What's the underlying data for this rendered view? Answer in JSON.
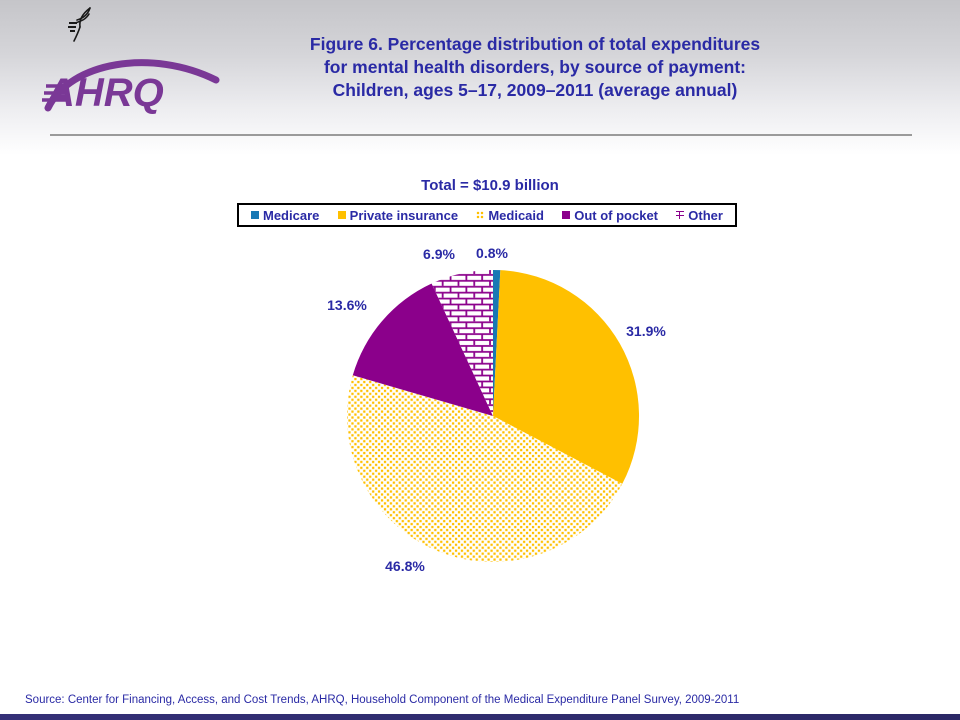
{
  "header": {
    "title_lines": [
      "Figure 6. Percentage distribution of total expenditures",
      "for mental health disorders, by source of payment:",
      "Children, ages 5–17, 2009–2011 (average annual)"
    ],
    "logo_text": "AHRQ"
  },
  "chart_data": {
    "type": "pie",
    "title": "Figure 6. Percentage distribution of total expenditures for mental health disorders, by source of payment: Children, ages 5–17, 2009–2011 (average annual)",
    "total_label": "Total = $10.9 billion",
    "categories": [
      "Medicare",
      "Private insurance",
      "Medicaid",
      "Out of pocket",
      "Other"
    ],
    "values": [
      0.8,
      31.9,
      46.8,
      13.6,
      6.9
    ],
    "labels": [
      "0.8%",
      "31.9%",
      "46.8%",
      "13.6%",
      "6.9%"
    ],
    "start_angle_deg": 0,
    "direction": "clockwise",
    "legend_position": "top",
    "slice_styles": [
      {
        "name": "Medicare",
        "pattern": "solid",
        "color": "#1878b4"
      },
      {
        "name": "Private insurance",
        "pattern": "solid",
        "color": "#ffc000"
      },
      {
        "name": "Medicaid",
        "pattern": "gold-dots-on-white",
        "color": "#ffc000"
      },
      {
        "name": "Out of pocket",
        "pattern": "solid",
        "color": "#8b008b"
      },
      {
        "name": "Other",
        "pattern": "purple-bricks-on-white",
        "color": "#8b008b"
      }
    ]
  },
  "footer": {
    "source": "Source: Center for Financing, Access, and Cost Trends, AHRQ, Household Component of the Medical Expenditure Panel Survey, 2009-2011"
  },
  "colors": {
    "title_text": "#2a2aa5",
    "medicare_blue": "#1878b4",
    "private_gold": "#ffc000",
    "out_of_pocket_purple": "#8b008b",
    "logo_purple": "#7a3896",
    "header_gray": "#c5c5c9",
    "bottom_bar": "#2e2b70"
  }
}
